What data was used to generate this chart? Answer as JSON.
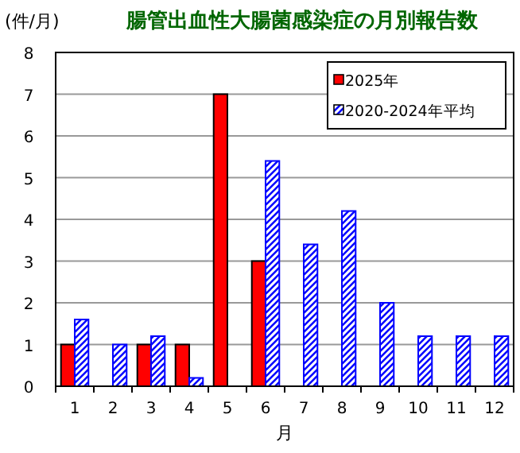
{
  "chart_data": {
    "type": "bar",
    "title": "腸管出血性大腸菌感染症の月別報告数",
    "ylabel": "(件/月)",
    "xlabel": "月",
    "categories": [
      "1",
      "2",
      "3",
      "4",
      "5",
      "6",
      "7",
      "8",
      "9",
      "10",
      "11",
      "12"
    ],
    "series": [
      {
        "name": "2025年",
        "color": "#ff0000",
        "values": [
          1,
          0,
          1,
          1,
          7,
          3,
          null,
          null,
          null,
          null,
          null,
          null
        ]
      },
      {
        "name": "2020-2024年平均",
        "color": "#0000ff",
        "values": [
          1.6,
          1.0,
          1.2,
          0.2,
          0,
          5.4,
          3.4,
          4.2,
          2.0,
          1.2,
          1.2,
          1.2
        ]
      }
    ],
    "ylim": [
      0,
      8
    ],
    "yticks": [
      0,
      1,
      2,
      3,
      4,
      5,
      6,
      7,
      8
    ],
    "grid": "y",
    "legend": "top right"
  }
}
